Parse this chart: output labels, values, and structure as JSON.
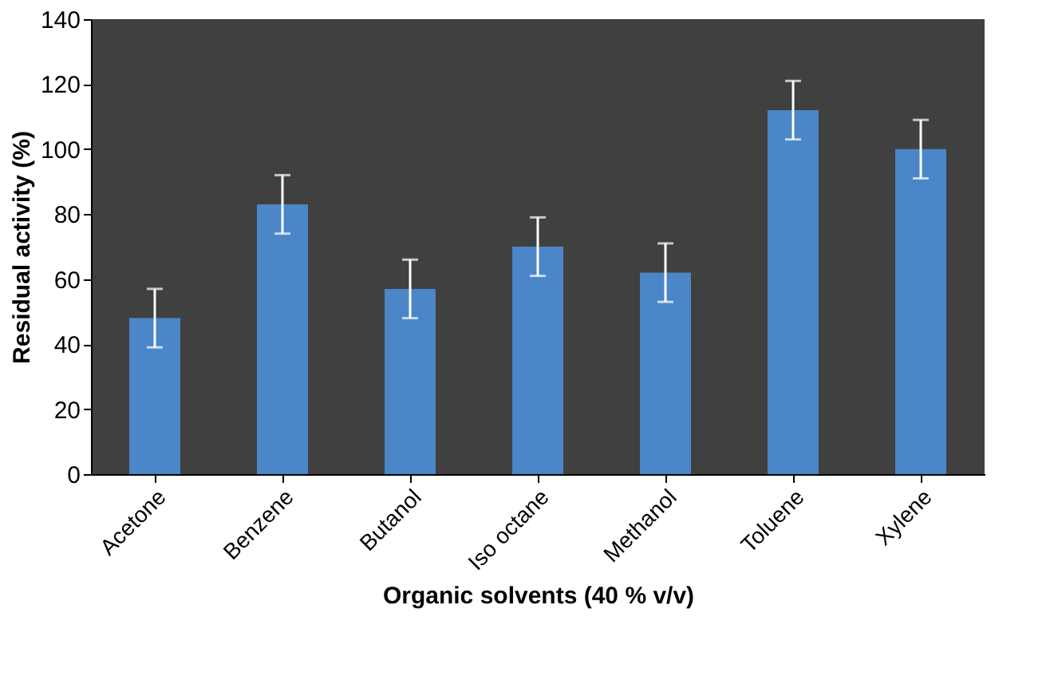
{
  "chart_data": {
    "type": "bar",
    "xlabel": "Organic solvents (40 % v/v)",
    "ylabel": "Residual activity (%)",
    "categories": [
      "Acetone",
      "Benzene",
      "Butanol",
      "Iso octane",
      "Methanol",
      "Toluene",
      "Xylene"
    ],
    "values": [
      48,
      83,
      57,
      70,
      62,
      112,
      100
    ],
    "errors": [
      9,
      9,
      9,
      9,
      9,
      9,
      9
    ],
    "color": "#4a86c8",
    "ylim": [
      0,
      140
    ],
    "yticks": [
      0,
      20,
      40,
      60,
      80,
      100,
      120,
      140
    ],
    "grid": false
  }
}
